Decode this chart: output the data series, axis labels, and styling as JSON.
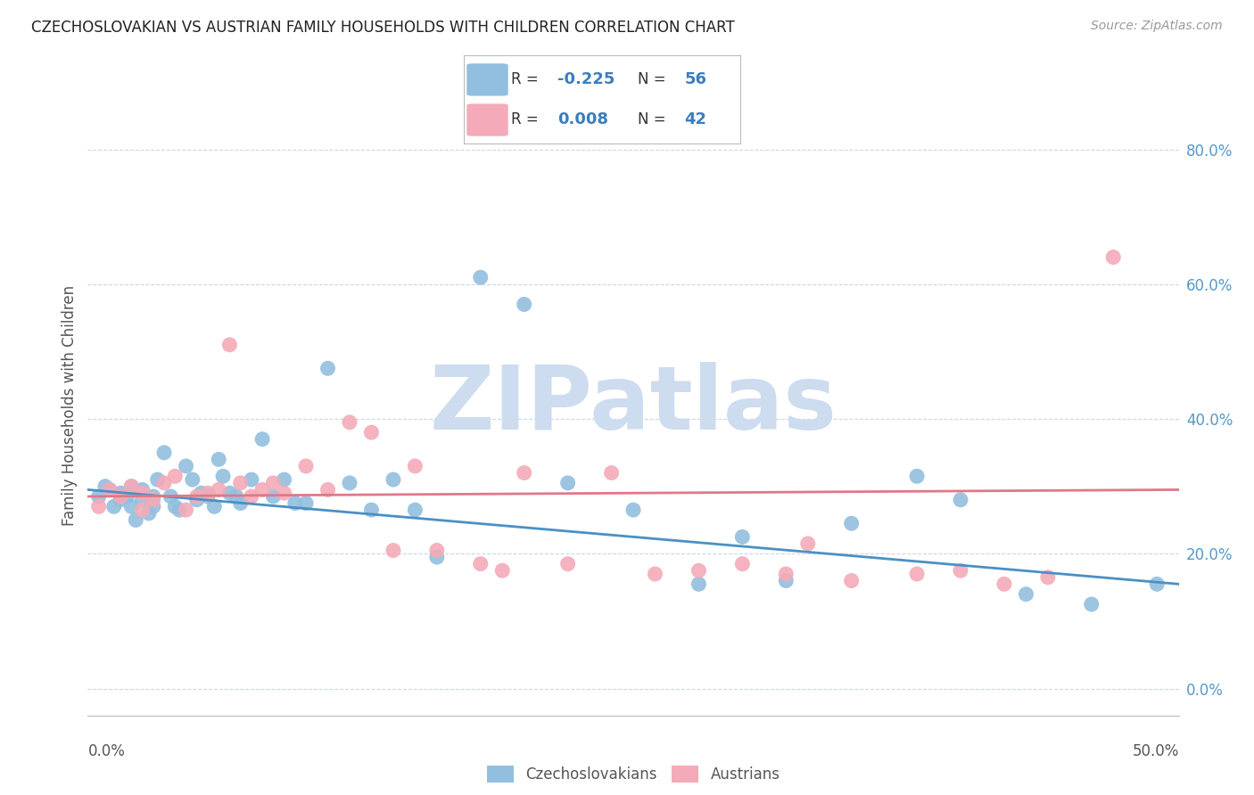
{
  "title": "CZECHOSLOVAKIAN VS AUSTRIAN FAMILY HOUSEHOLDS WITH CHILDREN CORRELATION CHART",
  "source": "Source: ZipAtlas.com",
  "ylabel": "Family Households with Children",
  "ytick_vals": [
    0.0,
    0.2,
    0.4,
    0.6,
    0.8
  ],
  "ytick_labels": [
    "0.0%",
    "20.0%",
    "40.0%",
    "60.0%",
    "80.0%"
  ],
  "xlim": [
    0.0,
    0.5
  ],
  "ylim": [
    -0.04,
    0.88
  ],
  "legend_label_blue": "Czechoslovakians",
  "legend_label_pink": "Austrians",
  "R_blue": -0.225,
  "N_blue": 56,
  "R_pink": 0.008,
  "N_pink": 42,
  "blue_color": "#92bfdf",
  "pink_color": "#f4aab8",
  "trend_blue": "#4a90c4",
  "trend_pink": "#e07888",
  "watermark_color": "#cddcef",
  "title_color": "#222222",
  "source_color": "#999999",
  "tick_color": "#5599cc",
  "blue_scatter_x": [
    0.005,
    0.008,
    0.01,
    0.012,
    0.015,
    0.015,
    0.018,
    0.02,
    0.02,
    0.022,
    0.025,
    0.025,
    0.028,
    0.03,
    0.03,
    0.032,
    0.035,
    0.038,
    0.04,
    0.042,
    0.045,
    0.048,
    0.05,
    0.052,
    0.055,
    0.058,
    0.06,
    0.062,
    0.065,
    0.068,
    0.07,
    0.075,
    0.08,
    0.085,
    0.09,
    0.095,
    0.1,
    0.11,
    0.12,
    0.13,
    0.14,
    0.15,
    0.16,
    0.18,
    0.2,
    0.22,
    0.25,
    0.28,
    0.3,
    0.32,
    0.35,
    0.38,
    0.4,
    0.43,
    0.46,
    0.49
  ],
  "blue_scatter_y": [
    0.285,
    0.3,
    0.295,
    0.27,
    0.29,
    0.28,
    0.285,
    0.3,
    0.27,
    0.25,
    0.295,
    0.28,
    0.26,
    0.285,
    0.27,
    0.31,
    0.35,
    0.285,
    0.27,
    0.265,
    0.33,
    0.31,
    0.28,
    0.29,
    0.285,
    0.27,
    0.34,
    0.315,
    0.29,
    0.285,
    0.275,
    0.31,
    0.37,
    0.285,
    0.31,
    0.275,
    0.275,
    0.475,
    0.305,
    0.265,
    0.31,
    0.265,
    0.195,
    0.61,
    0.57,
    0.305,
    0.265,
    0.155,
    0.225,
    0.16,
    0.245,
    0.315,
    0.28,
    0.14,
    0.125,
    0.155
  ],
  "pink_scatter_x": [
    0.005,
    0.01,
    0.015,
    0.02,
    0.025,
    0.025,
    0.03,
    0.035,
    0.04,
    0.045,
    0.05,
    0.055,
    0.06,
    0.065,
    0.07,
    0.075,
    0.08,
    0.085,
    0.09,
    0.1,
    0.11,
    0.12,
    0.13,
    0.14,
    0.15,
    0.16,
    0.18,
    0.19,
    0.2,
    0.22,
    0.24,
    0.26,
    0.28,
    0.3,
    0.32,
    0.33,
    0.35,
    0.38,
    0.4,
    0.42,
    0.44,
    0.47
  ],
  "pink_scatter_y": [
    0.27,
    0.295,
    0.285,
    0.3,
    0.265,
    0.29,
    0.28,
    0.305,
    0.315,
    0.265,
    0.285,
    0.29,
    0.295,
    0.51,
    0.305,
    0.285,
    0.295,
    0.305,
    0.29,
    0.33,
    0.295,
    0.395,
    0.38,
    0.205,
    0.33,
    0.205,
    0.185,
    0.175,
    0.32,
    0.185,
    0.32,
    0.17,
    0.175,
    0.185,
    0.17,
    0.215,
    0.16,
    0.17,
    0.175,
    0.155,
    0.165,
    0.64
  ],
  "trend_blue_y0": 0.295,
  "trend_blue_y1": 0.155,
  "trend_pink_y0": 0.285,
  "trend_pink_y1": 0.295
}
